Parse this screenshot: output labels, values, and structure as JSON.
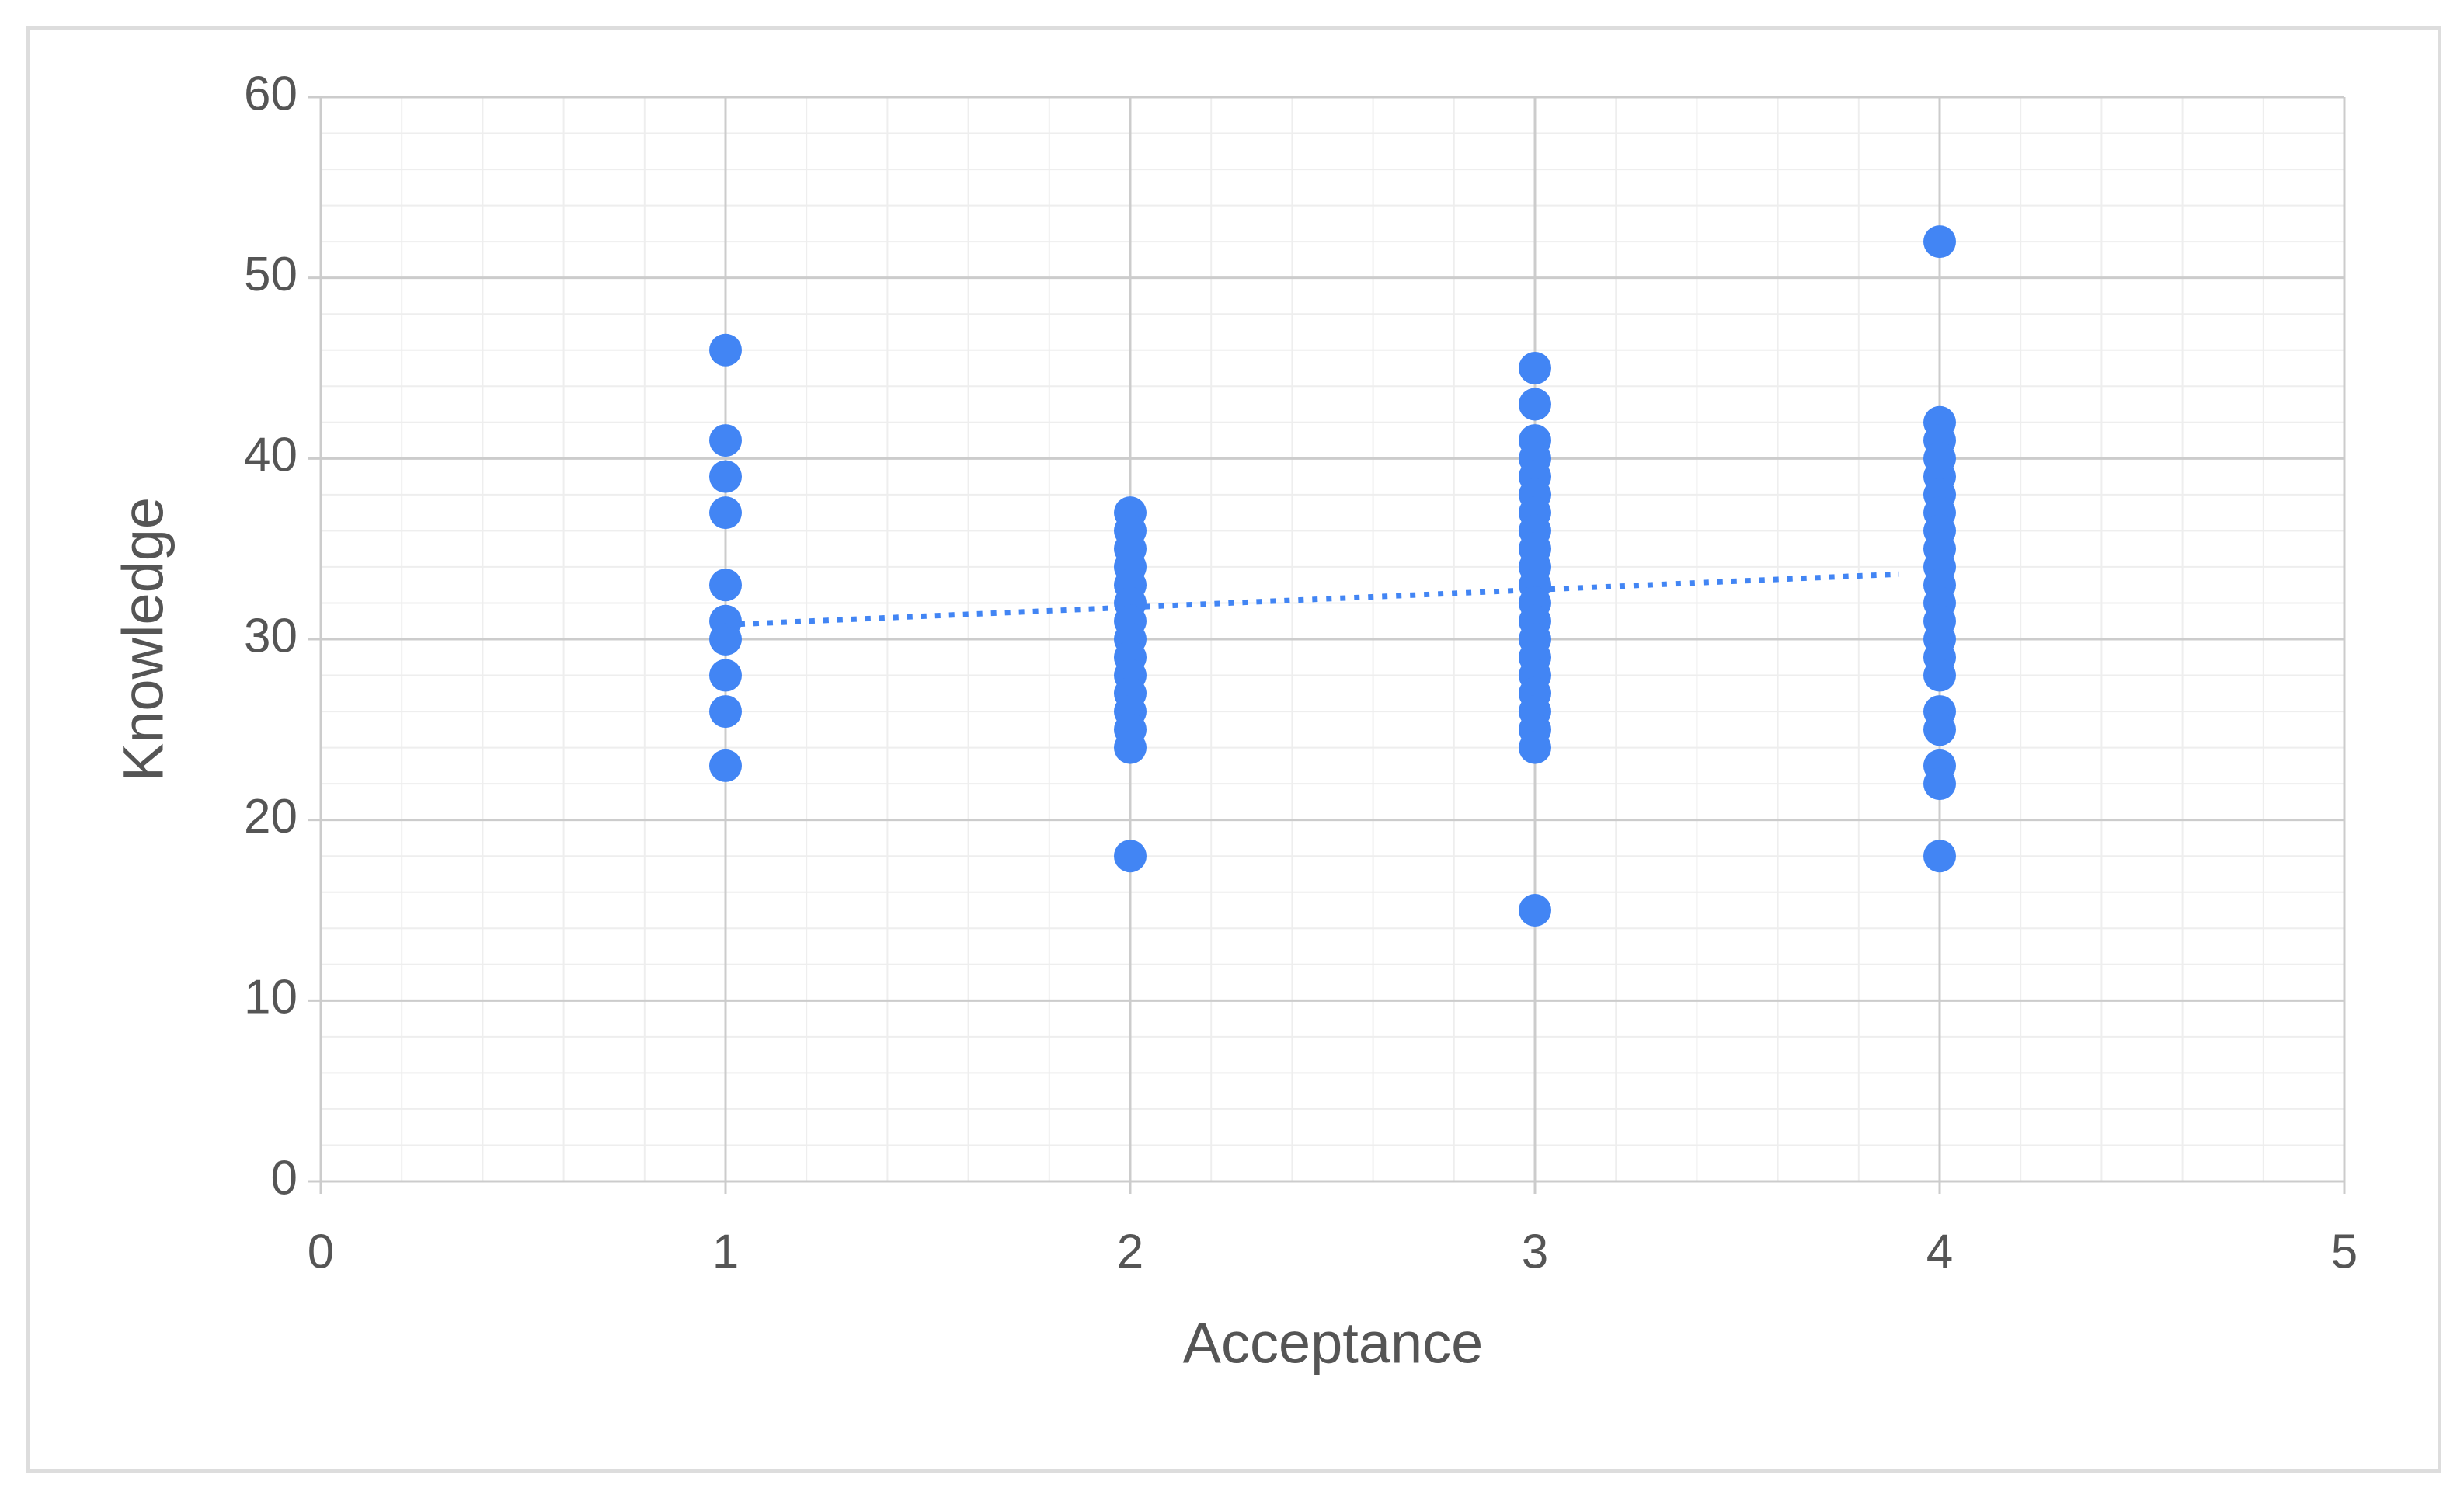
{
  "chart_data": {
    "type": "scatter",
    "x_label": "Acceptance",
    "y_label": "Knowledge",
    "x": [
      1,
      1,
      1,
      1,
      1,
      1,
      1,
      1,
      1,
      1,
      2,
      2,
      2,
      2,
      2,
      2,
      2,
      2,
      2,
      2,
      2,
      2,
      2,
      2,
      2,
      3,
      3,
      3,
      3,
      3,
      3,
      3,
      3,
      3,
      3,
      3,
      3,
      3,
      3,
      3,
      3,
      3,
      3,
      3,
      3,
      3,
      4,
      4,
      4,
      4,
      4,
      4,
      4,
      4,
      4,
      4,
      4,
      4,
      4,
      4,
      4,
      4,
      4,
      4,
      4,
      4,
      4
    ],
    "values": [
      46,
      41,
      39,
      37,
      33,
      31,
      30,
      28,
      26,
      23,
      37,
      36,
      35,
      34,
      33,
      32,
      31,
      30,
      29,
      28,
      27,
      26,
      25,
      24,
      18,
      45,
      43,
      41,
      40,
      39,
      38,
      37,
      36,
      35,
      34,
      33,
      32,
      31,
      30,
      29,
      28,
      27,
      26,
      25,
      24,
      15,
      52,
      42,
      41,
      40,
      39,
      38,
      37,
      36,
      35,
      34,
      33,
      32,
      31,
      30,
      29,
      28,
      26,
      25,
      23,
      22,
      18
    ],
    "color": "#4285f4",
    "trendline": {
      "x": [
        1,
        3.9
      ],
      "y": [
        30.8,
        33.6
      ],
      "style": "dotted"
    },
    "xlim": [
      0,
      5
    ],
    "xticks": [
      0,
      1,
      2,
      3,
      4,
      5
    ],
    "ylim": [
      0,
      60
    ],
    "yticks": [
      0,
      10,
      20,
      30,
      40,
      50,
      60
    ],
    "grid": true,
    "minor_divisions": 5
  }
}
